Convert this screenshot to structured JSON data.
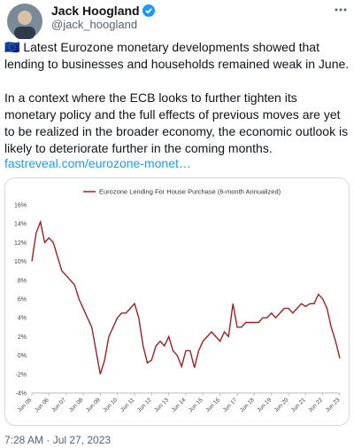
{
  "tweet": {
    "name": "Jack Hoogland",
    "handle": "@jack_hoogland",
    "paragraphs": [
      "🇪🇺 Latest Eurozone monetary developments showed that lending to businesses and households remained weak in June.",
      "In a context where the ECB looks to further tighten its monetary policy and the full effects of previous moves are yet to be realized in the broader economy, the economic outlook is likely to deteriorate further in the coming months."
    ],
    "link": "fastreveal.com/eurozone-monet…",
    "timestamp": "7:28 AM · Jul 27, 2023"
  },
  "chart_data": {
    "type": "line",
    "categories": [
      "Jun 05",
      null,
      null,
      null,
      "Jun 06",
      null,
      null,
      null,
      "Jun 07",
      null,
      null,
      null,
      "Jun 08",
      null,
      null,
      null,
      "Jun 09",
      null,
      null,
      null,
      "Jun 10",
      null,
      null,
      null,
      "Jun 11",
      null,
      null,
      null,
      "Jun 12",
      null,
      null,
      null,
      "Jun 13",
      null,
      null,
      null,
      "Jun 14",
      null,
      null,
      null,
      "Jun 15",
      null,
      null,
      null,
      "Jun 16",
      null,
      null,
      null,
      "Jun 17",
      null,
      null,
      null,
      "Jun 18",
      null,
      null,
      null,
      "Jun 19",
      null,
      null,
      null,
      "Jun 20",
      null,
      null,
      null,
      "Jun 21",
      null,
      null,
      null,
      "Jun 22",
      null,
      null,
      null,
      "Jun 23"
    ],
    "series": [
      {
        "name": "Eurozone Lending For House Purchase (6-month Annualized)",
        "color": "#a31f1f",
        "values": [
          10,
          13,
          14.2,
          12,
          12.5,
          12,
          10.5,
          9,
          8.5,
          8,
          7.5,
          6,
          5,
          4,
          3,
          0.5,
          -2,
          -0.5,
          2,
          3,
          4,
          4.5,
          4.5,
          5,
          5.5,
          4,
          1,
          -0.8,
          -0.5,
          1,
          1.5,
          1,
          2,
          0.5,
          0,
          -1.2,
          0.5,
          0.5,
          -1.3,
          0.5,
          1.5,
          2,
          2.5,
          2,
          1.5,
          2.5,
          2,
          5.5,
          3,
          3,
          3.5,
          3.5,
          3.5,
          3.5,
          4,
          4,
          4.5,
          4,
          4.5,
          5,
          5,
          4.5,
          5,
          5.5,
          5.2,
          5.5,
          5.5,
          6.5,
          6,
          5,
          3,
          1.5,
          -0.3
        ]
      }
    ],
    "ylim": [
      -4,
      16
    ],
    "yticks": [
      {
        "value": -4,
        "label": "-4%"
      },
      {
        "value": -2,
        "label": "-2%"
      },
      {
        "value": 0,
        "label": "0%"
      },
      {
        "value": 2,
        "label": "2%"
      },
      {
        "value": 4,
        "label": "4%"
      },
      {
        "value": 6,
        "label": "6%"
      },
      {
        "value": 8,
        "label": "8%"
      },
      {
        "value": 10,
        "label": "10%"
      },
      {
        "value": 12,
        "label": "12%"
      },
      {
        "value": 14,
        "label": "14%"
      },
      {
        "value": 16,
        "label": "16%"
      }
    ],
    "grid": false
  }
}
